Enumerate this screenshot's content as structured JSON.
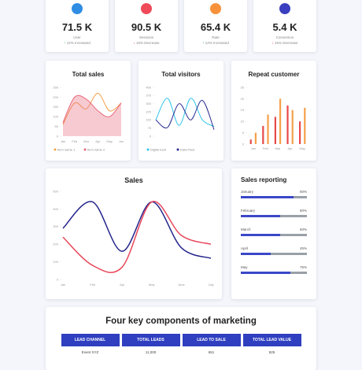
{
  "stats": [
    {
      "value": "71.5 K",
      "label": "User",
      "change": "12% Increased",
      "trend": "up",
      "color": "#2f8de4"
    },
    {
      "value": "90.5 K",
      "label": "Sessions",
      "change": "15% Decrease",
      "trend": "down",
      "color": "#ef4b5a"
    },
    {
      "value": "65.4 K",
      "label": "Rate",
      "change": "14% Increased",
      "trend": "up",
      "color": "#f7913a"
    },
    {
      "value": "5.4 K",
      "label": "Conversion",
      "change": "15% Decrease",
      "trend": "down",
      "color": "#3a3fbf"
    }
  ],
  "chart_data": [
    {
      "type": "line",
      "title": "Total sales",
      "categories": [
        "Jan",
        "Feb",
        "Mar",
        "Apr",
        "May",
        "Jun"
      ],
      "ylim": [
        0,
        250
      ],
      "yticks": [
        0,
        50,
        100,
        150,
        200,
        250
      ],
      "series": [
        {
          "name": "Item name 1",
          "color": "#f5a04a",
          "values": [
            60,
            170,
            140,
            220,
            130,
            170
          ]
        },
        {
          "name": "Item name 2",
          "color": "#e8687a",
          "area": true,
          "values": [
            70,
            200,
            190,
            130,
            100,
            170
          ]
        }
      ]
    },
    {
      "type": "line",
      "title": "Total visitors",
      "ylim": [
        0,
        450
      ],
      "yticks": [
        0,
        75,
        150,
        225,
        300,
        375,
        450
      ],
      "series": [
        {
          "name": "Digital Exst",
          "color": "#2fc4e8",
          "values": [
            150,
            350,
            100,
            350,
            150,
            90
          ]
        },
        {
          "name": "Data Pack",
          "color": "#2a2d8f",
          "values": [
            150,
            80,
            300,
            150,
            330,
            60
          ]
        }
      ]
    },
    {
      "type": "bar",
      "title": "Repeat customer",
      "categories": [
        "Jan",
        "Feb",
        "Mar",
        "Apr",
        "May"
      ],
      "ylim": [
        0,
        25
      ],
      "yticks": [
        0,
        5,
        10,
        15,
        20,
        25
      ],
      "series": [
        {
          "color": "#e84a4a",
          "values": [
            2,
            8,
            12,
            17,
            10
          ]
        },
        {
          "color": "#f5a04a",
          "values": [
            5,
            13,
            20,
            15,
            16
          ]
        }
      ]
    },
    {
      "type": "line",
      "title": "Sales",
      "categories": [
        "Jan",
        "Feb",
        "Apr",
        "May",
        "June",
        "July"
      ],
      "ylim": [
        0,
        500
      ],
      "yticks": [
        0,
        100,
        200,
        300,
        400,
        500
      ],
      "series": [
        {
          "color": "#23258a",
          "values": [
            290,
            440,
            160,
            440,
            180,
            120
          ]
        },
        {
          "color": "#e8465a",
          "values": [
            240,
            80,
            70,
            440,
            250,
            200
          ]
        }
      ]
    }
  ],
  "reporting": {
    "title": "Sales reporting",
    "color": "#3a48c8",
    "items": [
      {
        "label": "January",
        "value": 80,
        "value_label": "80%"
      },
      {
        "label": "February",
        "value": 60,
        "value_label": "60%"
      },
      {
        "label": "March",
        "value": 60,
        "value_label": "60%"
      },
      {
        "label": "April",
        "value": 45,
        "value_label": "45%"
      },
      {
        "label": "May",
        "value": 75,
        "value_label": "75%"
      }
    ]
  },
  "table": {
    "title": "Four key components of marketing",
    "headers": [
      "LEAD CHANNEL",
      "TOTAL LEADS",
      "LEAD TO SALE",
      "TOTAL LEAD VALUE"
    ],
    "rows": [
      [
        "Event XYZ",
        "11,000",
        "651",
        "825"
      ]
    ]
  }
}
